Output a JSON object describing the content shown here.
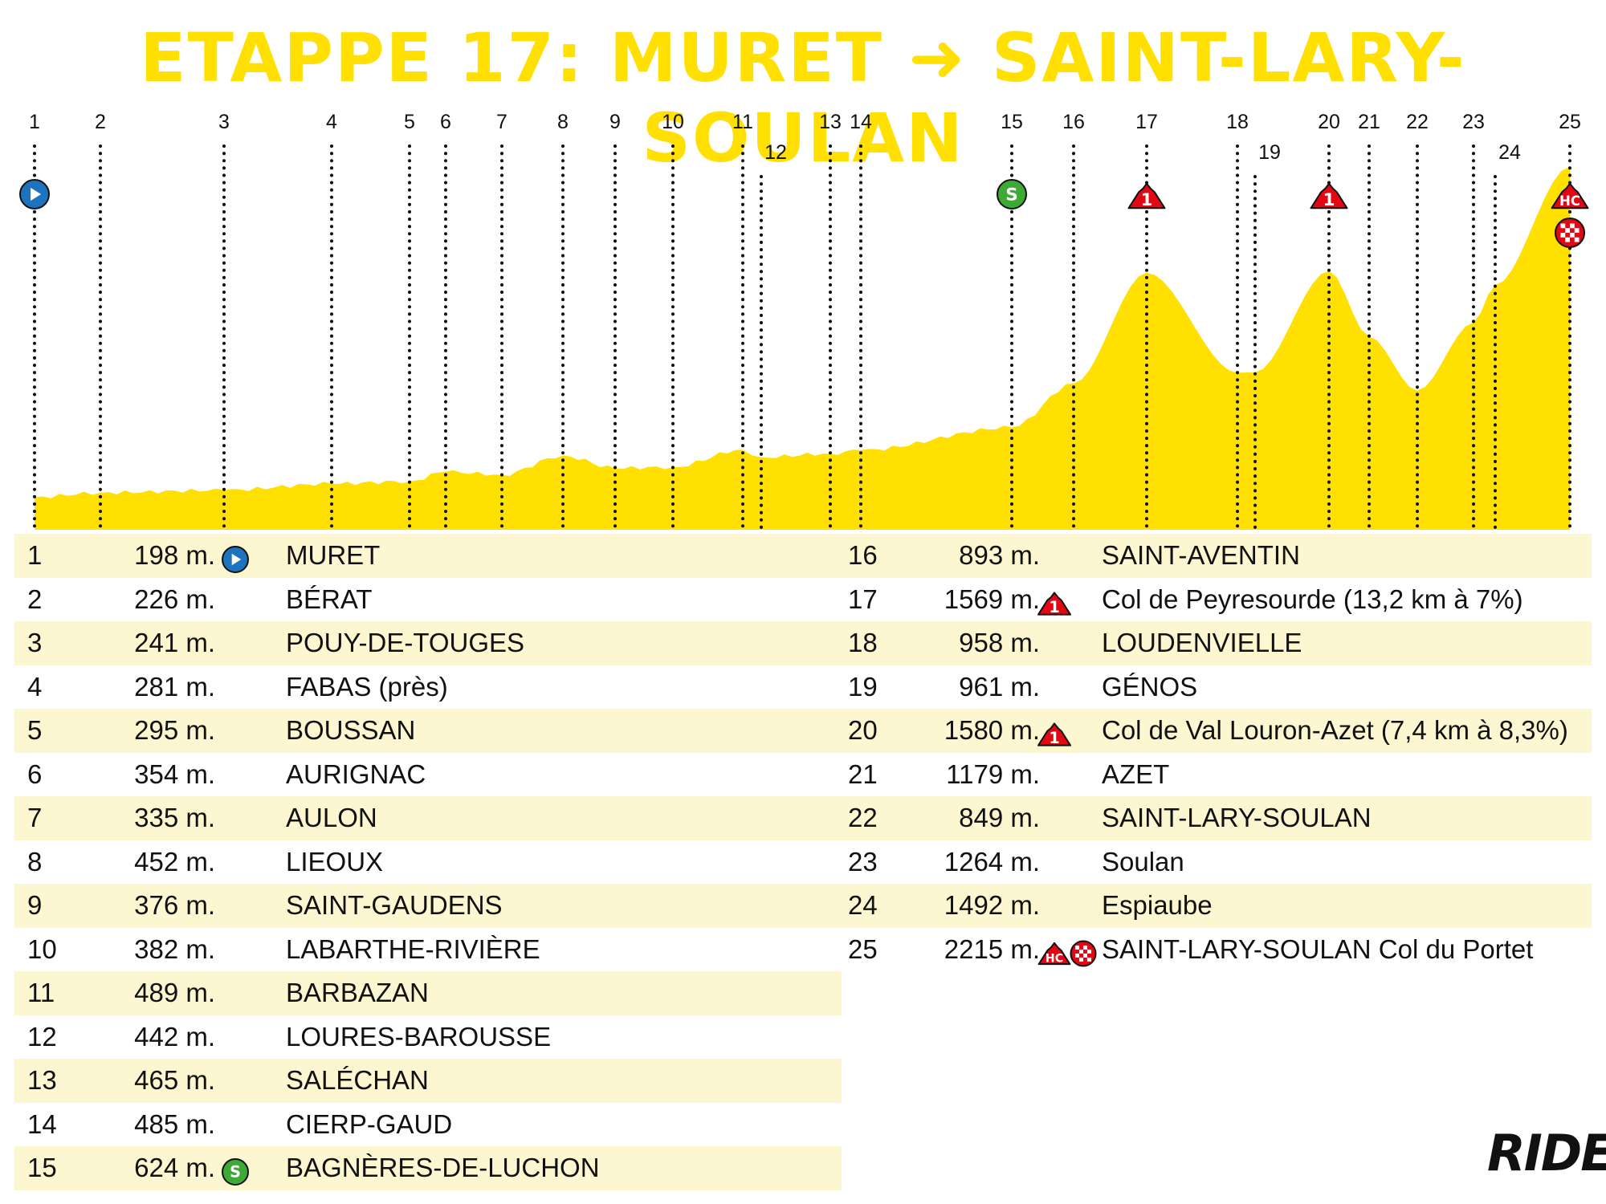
{
  "title": "ETAPPE 17: MURET ➜ SAINT-LARY-SOULAN",
  "brand": "RIDE",
  "colors": {
    "profile_fill": "#FFE000",
    "title": "#FFE000",
    "row_shade": "#FCF7D0",
    "start_icon": "#1E73BE",
    "sprint_icon": "#3DAA35",
    "climb_icon": "#E30613"
  },
  "chart_data": {
    "type": "area",
    "title": "ETAPPE 17: MURET ➜ SAINT-LARY-SOULAN",
    "xlabel": "",
    "ylabel": "",
    "grid": false,
    "ylim": [
      0,
      2400
    ],
    "x": [
      1,
      2,
      3,
      4,
      5,
      6,
      7,
      8,
      9,
      10,
      11,
      12,
      13,
      14,
      15,
      16,
      17,
      18,
      19,
      20,
      21,
      22,
      23,
      24,
      25
    ],
    "values": [
      198,
      226,
      241,
      281,
      295,
      354,
      335,
      452,
      376,
      382,
      489,
      442,
      465,
      485,
      624,
      893,
      1569,
      958,
      961,
      1580,
      1179,
      849,
      1264,
      1492,
      2215
    ],
    "markers": [
      {
        "point": 1,
        "icon": "start-icon"
      },
      {
        "point": 15,
        "icon": "sprint-icon",
        "label": "S"
      },
      {
        "point": 17,
        "icon": "climb-cat1-icon",
        "label": "1"
      },
      {
        "point": 20,
        "icon": "climb-cat1-icon",
        "label": "1"
      },
      {
        "point": 25,
        "icon": "climb-hc-icon",
        "label": "HC"
      },
      {
        "point": 25,
        "icon": "finish-icon"
      }
    ]
  },
  "waypoints": [
    {
      "n": "1",
      "alt": "198 m.",
      "name": "MURET",
      "icon": "start"
    },
    {
      "n": "2",
      "alt": "226 m.",
      "name": "BÉRAT",
      "icon": ""
    },
    {
      "n": "3",
      "alt": "241 m.",
      "name": "POUY-DE-TOUGES",
      "icon": ""
    },
    {
      "n": "4",
      "alt": "281 m.",
      "name": "FABAS (près)",
      "icon": ""
    },
    {
      "n": "5",
      "alt": "295 m.",
      "name": "BOUSSAN",
      "icon": ""
    },
    {
      "n": "6",
      "alt": "354 m.",
      "name": "AURIGNAC",
      "icon": ""
    },
    {
      "n": "7",
      "alt": "335 m.",
      "name": "AULON",
      "icon": ""
    },
    {
      "n": "8",
      "alt": "452 m.",
      "name": "LIEOUX",
      "icon": ""
    },
    {
      "n": "9",
      "alt": "376 m.",
      "name": "SAINT-GAUDENS",
      "icon": ""
    },
    {
      "n": "10",
      "alt": "382 m.",
      "name": "LABARTHE-RIVIÈRE",
      "icon": ""
    },
    {
      "n": "11",
      "alt": "489 m.",
      "name": "BARBAZAN",
      "icon": ""
    },
    {
      "n": "12",
      "alt": "442 m.",
      "name": "LOURES-BAROUSSE",
      "icon": ""
    },
    {
      "n": "13",
      "alt": "465 m.",
      "name": "SALÉCHAN",
      "icon": ""
    },
    {
      "n": "14",
      "alt": "485 m.",
      "name": "CIERP-GAUD",
      "icon": ""
    },
    {
      "n": "15",
      "alt": "624 m.",
      "name": "BAGNÈRES-DE-LUCHON",
      "icon": "sprint"
    },
    {
      "n": "16",
      "alt": "893 m.",
      "name": "SAINT-AVENTIN",
      "icon": ""
    },
    {
      "n": "17",
      "alt": "1569 m.",
      "name": "Col de Peyresourde (13,2 km à 7%)",
      "icon": "cat1"
    },
    {
      "n": "18",
      "alt": "958 m.",
      "name": "LOUDENVIELLE",
      "icon": ""
    },
    {
      "n": "19",
      "alt": "961 m.",
      "name": "GÉNOS",
      "icon": ""
    },
    {
      "n": "20",
      "alt": "1580 m.",
      "name": "Col de Val Louron-Azet (7,4 km à 8,3%)",
      "icon": "cat1"
    },
    {
      "n": "21",
      "alt": "1179 m.",
      "name": "AZET",
      "icon": ""
    },
    {
      "n": "22",
      "alt": "849 m.",
      "name": "SAINT-LARY-SOULAN",
      "icon": ""
    },
    {
      "n": "23",
      "alt": "1264 m.",
      "name": "Soulan",
      "icon": ""
    },
    {
      "n": "24",
      "alt": "1492 m.",
      "name": "Espiaube",
      "icon": ""
    },
    {
      "n": "25",
      "alt": "2215 m.",
      "name": "SAINT-LARY-SOULAN Col du Portet",
      "icon": "hc+finish"
    }
  ]
}
